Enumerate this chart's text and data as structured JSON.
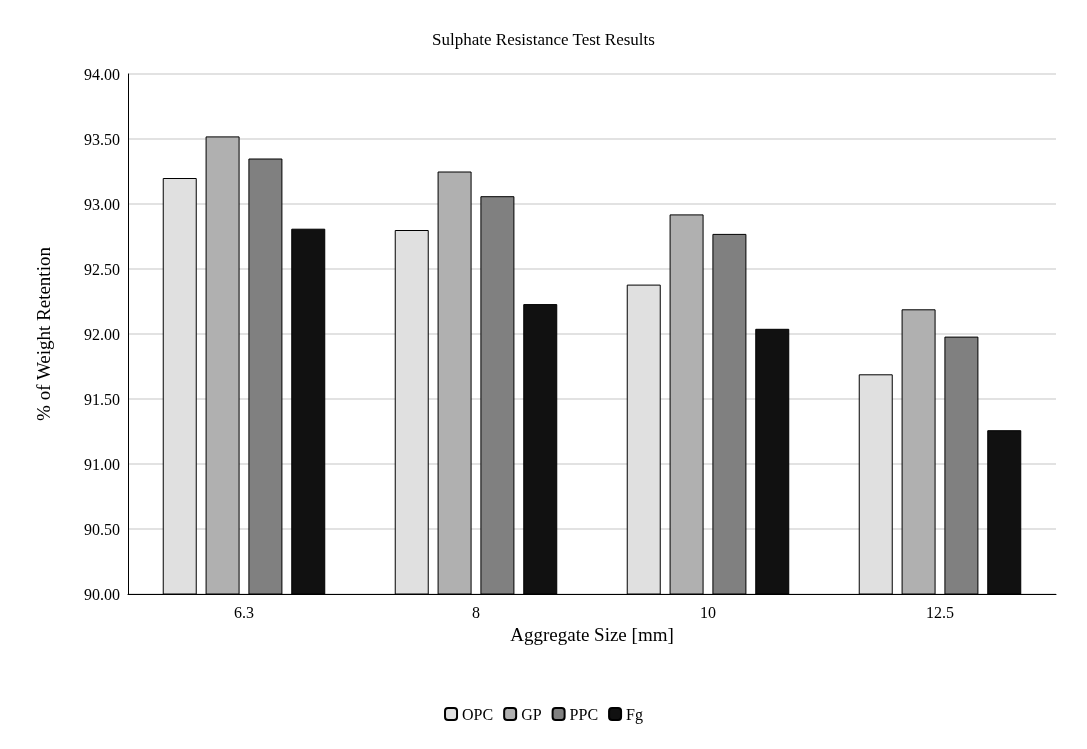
{
  "chart_data": {
    "type": "bar",
    "title": "Sulphate Resistance Test Results",
    "xlabel": "Aggregate Size [mm]",
    "ylabel": "% of Weight Retention",
    "categories": [
      "6.3",
      "8",
      "10",
      "12.5"
    ],
    "series": [
      {
        "name": "OPC",
        "color": "#e0e0e0",
        "values": [
          93.2,
          92.8,
          92.38,
          91.69
        ]
      },
      {
        "name": "GP",
        "color": "#b0b0b0",
        "values": [
          93.52,
          93.25,
          92.92,
          92.19
        ]
      },
      {
        "name": "PPC",
        "color": "#808080",
        "values": [
          93.35,
          93.06,
          92.77,
          91.98
        ]
      },
      {
        "name": "Fg",
        "color": "#111111",
        "values": [
          92.81,
          92.23,
          92.04,
          91.26
        ]
      }
    ],
    "ylim": [
      90,
      94
    ],
    "yticks": [
      {
        "value": 90,
        "label": "90.00"
      },
      {
        "value": 90.5,
        "label": "90.50"
      },
      {
        "value": 91,
        "label": "91.00"
      },
      {
        "value": 91.5,
        "label": "91.50"
      },
      {
        "value": 92,
        "label": "92.00"
      },
      {
        "value": 92.5,
        "label": "92.50"
      },
      {
        "value": 93,
        "label": "93.00"
      },
      {
        "value": 93.5,
        "label": "93.50"
      },
      {
        "value": 94,
        "label": "94.00"
      }
    ],
    "grid": "y",
    "legend": "bottom"
  }
}
